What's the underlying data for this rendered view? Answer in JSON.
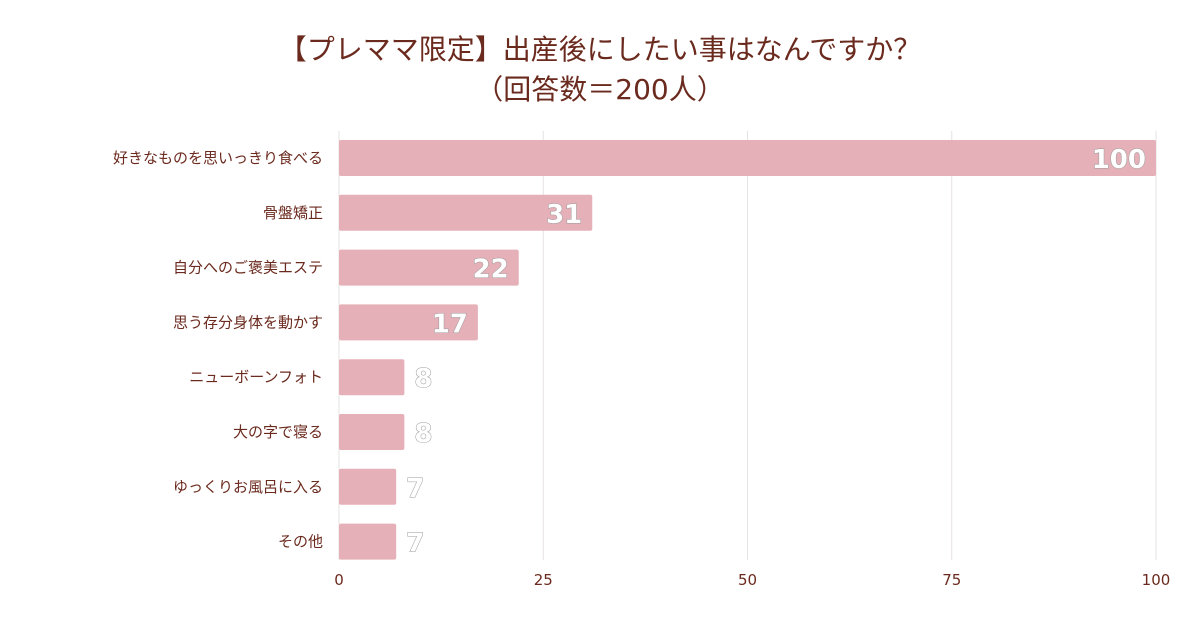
{
  "header": {
    "title_line1": "【プレママ限定】出産後にしたい事はなんですか？",
    "title_line2": "（回答数＝200人）"
  },
  "colors": {
    "bar": "#e5b0b8",
    "text": "#6b2a1e",
    "grid": "#e7e2e2"
  },
  "chart_data": {
    "type": "bar",
    "orientation": "horizontal",
    "categories": [
      "好きなものを思いっきり食べる",
      "骨盤矯正",
      "自分へのご褒美エステ",
      "思う存分身体を動かす",
      "ニューボーンフォト",
      "大の字で寝る",
      "ゆっくりお風呂に入る",
      "その他"
    ],
    "values": [
      100,
      31,
      22,
      17,
      8,
      8,
      7,
      7
    ],
    "data_labels": [
      "100",
      "31",
      "22",
      "17",
      "8",
      "8",
      "7",
      "7"
    ],
    "xlim": [
      0,
      100
    ],
    "xticks": [
      0,
      25,
      50,
      75,
      100
    ],
    "xtick_labels": [
      "0",
      "25",
      "50",
      "75",
      "100"
    ],
    "grid": true,
    "legend": "none"
  }
}
